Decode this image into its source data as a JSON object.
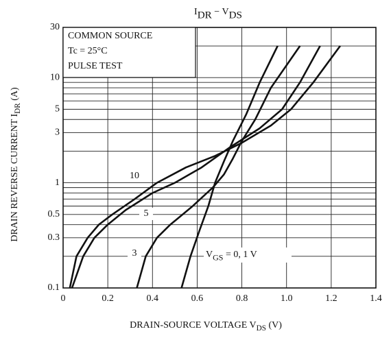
{
  "chart_data": {
    "type": "line",
    "title": [
      "I",
      "DR",
      " − V",
      "DS"
    ],
    "x_label": [
      "DRAIN-SOURCE VOLTAGE  V",
      "DS",
      "   (V)"
    ],
    "y_label": [
      "DRAIN REVERSE CURRENT  I",
      "DR",
      "   (A)"
    ],
    "legend_box": [
      "COMMON SOURCE",
      "Tc = 25°C",
      "PULSE TEST"
    ],
    "xlim": [
      0,
      1.4
    ],
    "xticks": [
      0,
      0.2,
      0.4,
      0.6,
      0.8,
      {
        "value": 1,
        "label": "1.0"
      },
      1.2,
      1.4
    ],
    "ylim": [
      0.1,
      30
    ],
    "y_log": true,
    "yticks": [
      0.1,
      0.3,
      0.5,
      1,
      3,
      5,
      10,
      30
    ],
    "y_gridlines": [
      0.2,
      0.4,
      0.6,
      0.7,
      0.8,
      0.9,
      2,
      4,
      6,
      7,
      8,
      9,
      20
    ],
    "grid": true,
    "color": "#111111",
    "series": [
      {
        "name": "10",
        "x": [
          0.03,
          0.06,
          0.11,
          0.16,
          0.22,
          0.32,
          0.42,
          0.55,
          0.68,
          0.8,
          0.93,
          1.02,
          1.12,
          1.24
        ],
        "values": [
          0.1,
          0.2,
          0.3,
          0.4,
          0.5,
          0.7,
          1.0,
          1.4,
          1.8,
          2.4,
          3.5,
          5,
          9,
          20
        ]
      },
      {
        "name": "5",
        "x": [
          0.04,
          0.09,
          0.14,
          0.2,
          0.28,
          0.4,
          0.5,
          0.62,
          0.75,
          0.88,
          0.98,
          1.06,
          1.15
        ],
        "values": [
          0.1,
          0.2,
          0.3,
          0.4,
          0.55,
          0.8,
          1.0,
          1.4,
          2.2,
          3.3,
          5,
          9,
          20
        ]
      },
      {
        "name": "3",
        "x": [
          0.33,
          0.37,
          0.42,
          0.48,
          0.58,
          0.67,
          0.72,
          0.76,
          0.8,
          0.86,
          0.93,
          1.06
        ],
        "values": [
          0.1,
          0.2,
          0.3,
          0.4,
          0.6,
          0.9,
          1.2,
          1.7,
          2.5,
          4,
          8,
          20
        ]
      },
      {
        "name": [
          "V",
          "GS",
          " = 0, 1 V"
        ],
        "x": [
          0.53,
          0.57,
          0.61,
          0.65,
          0.68,
          0.72,
          0.76,
          0.82,
          0.88,
          0.96
        ],
        "values": [
          0.1,
          0.2,
          0.35,
          0.6,
          1.0,
          1.6,
          2.5,
          4.5,
          9,
          20
        ]
      }
    ]
  }
}
